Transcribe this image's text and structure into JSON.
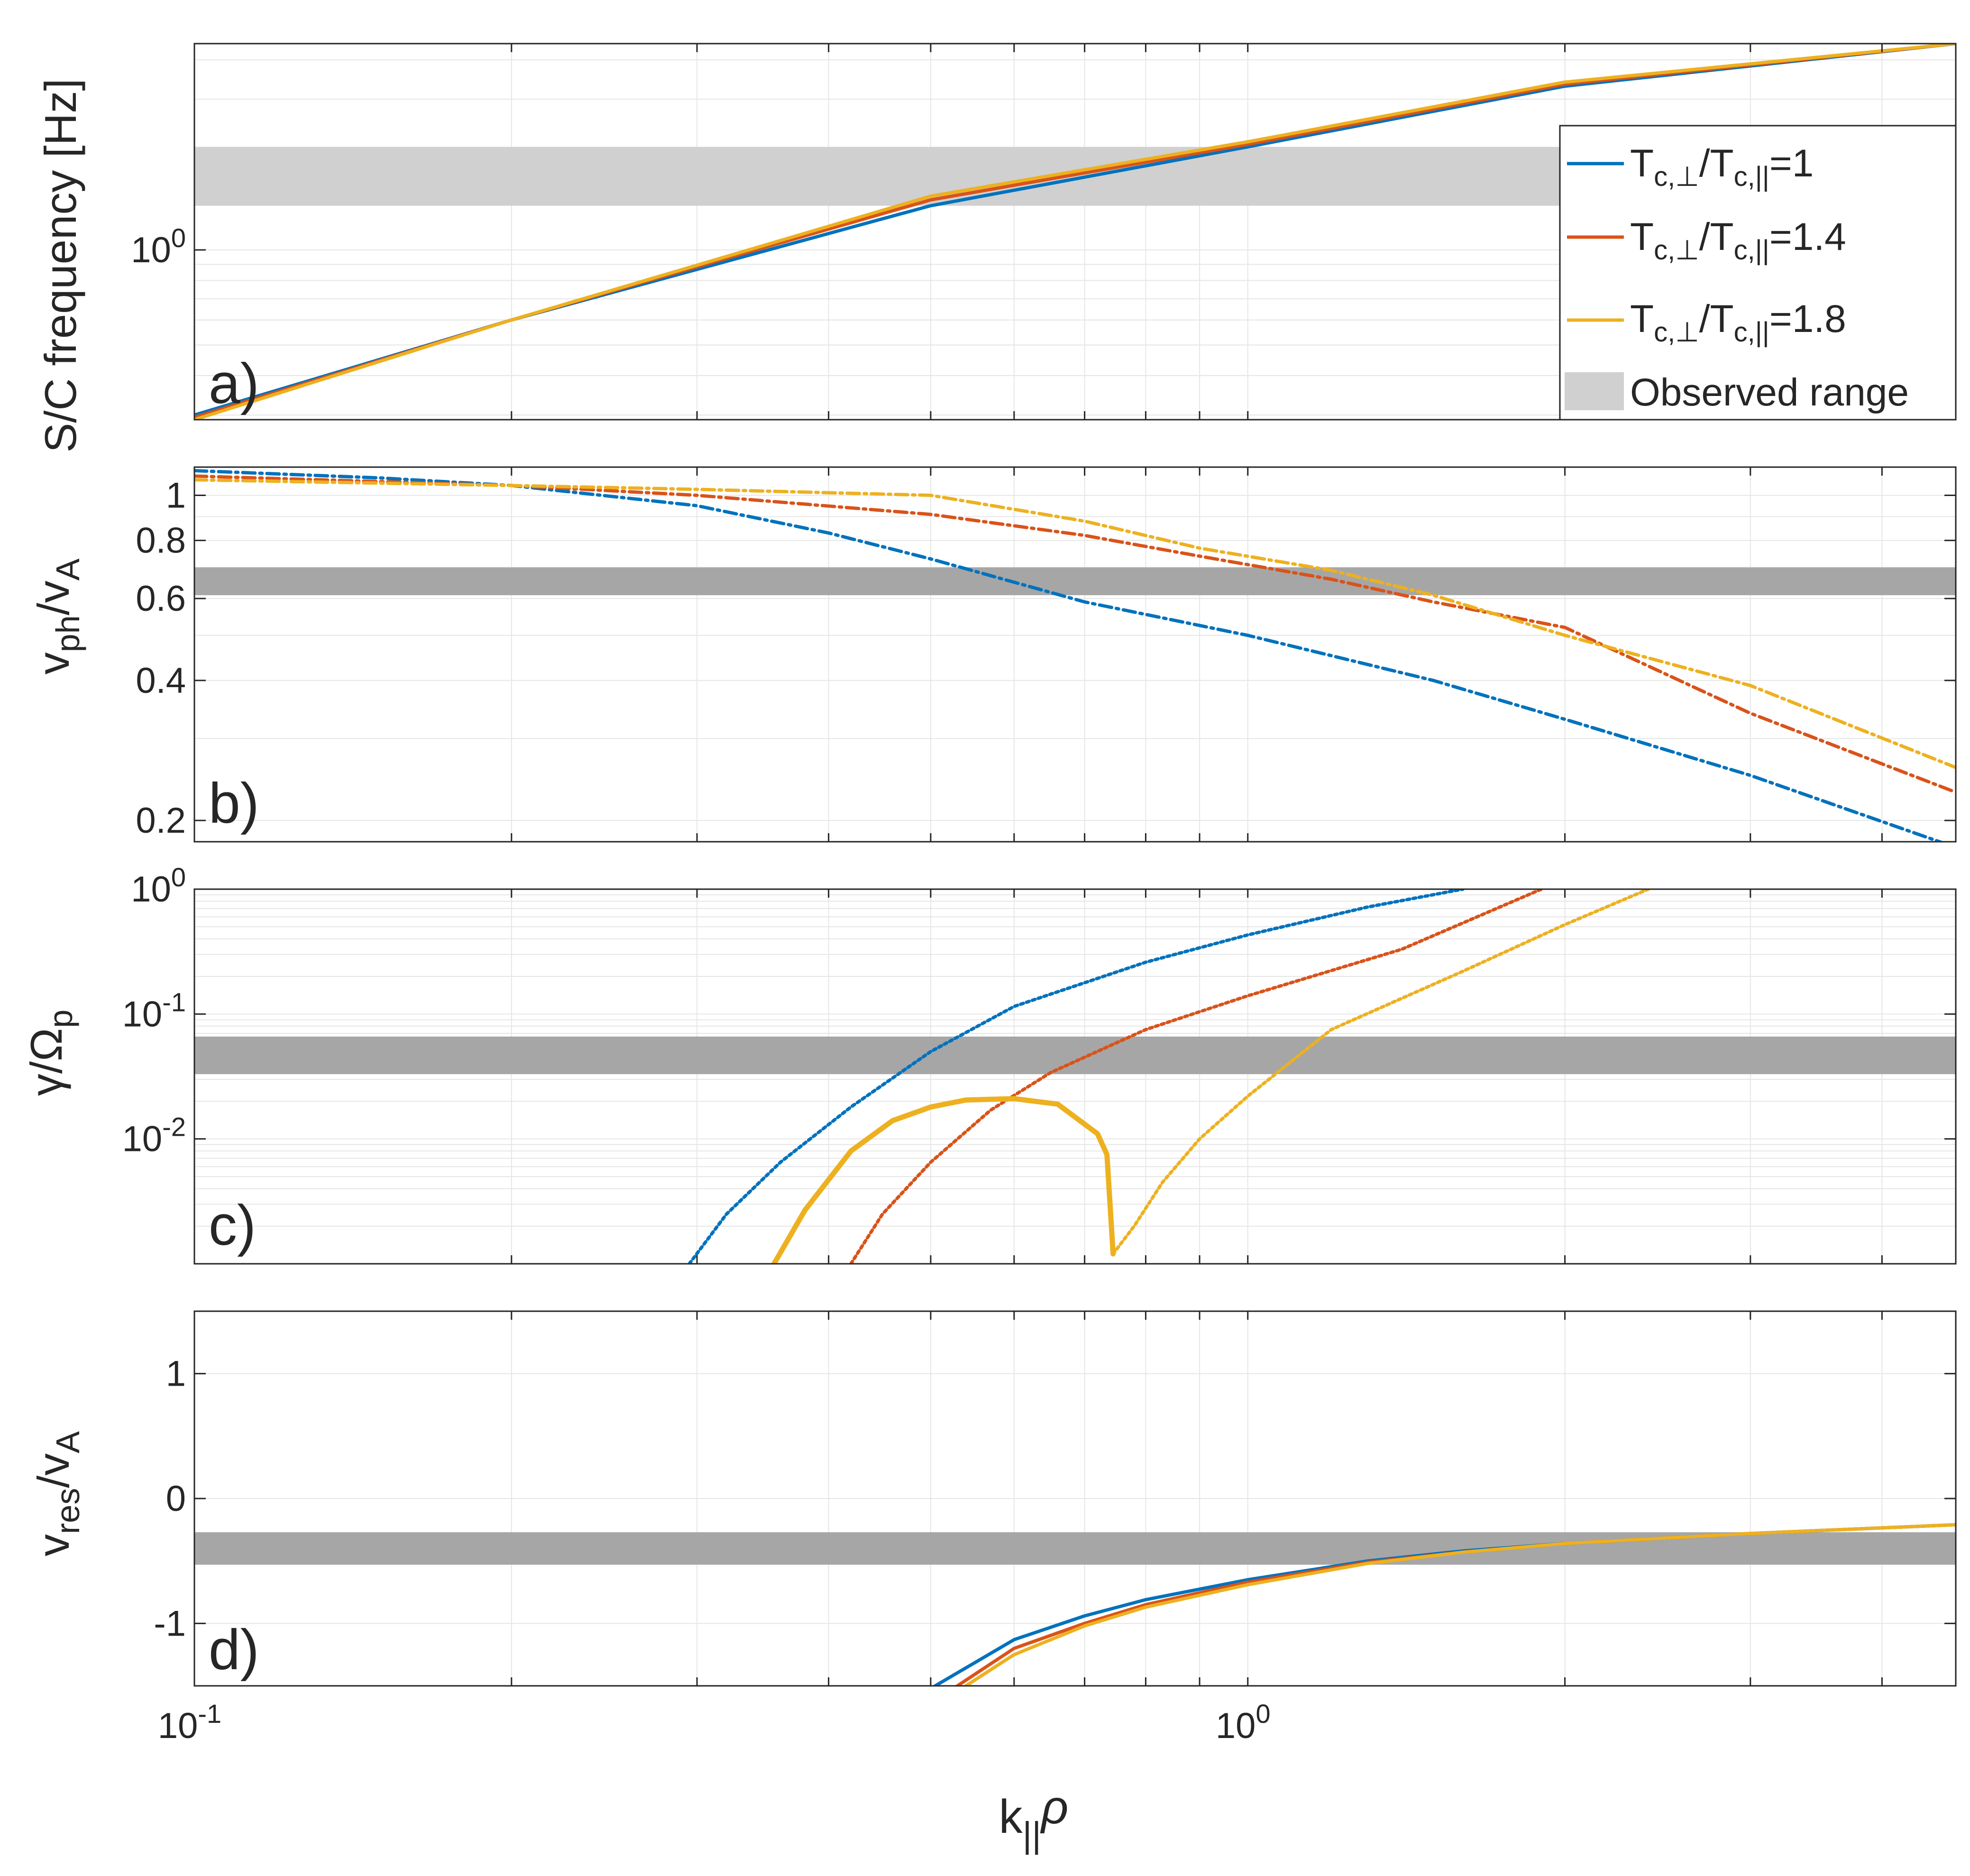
{
  "chart_data": [
    {
      "panel": "a",
      "type": "line",
      "panel_label": "a)",
      "ylabel": "S/C frequency [Hz]",
      "xscale": "log",
      "yscale": "log",
      "xlim": [
        0.1,
        4.7
      ],
      "ylim": [
        0.29,
        4.5
      ],
      "yticks": [
        {
          "v": 1,
          "b": "10",
          "e": "0"
        }
      ],
      "band": [
        1.38,
        2.12
      ],
      "series": [
        {
          "name": "T_c,⊥/T_c,||=1",
          "color": "#0072BD",
          "x": [
            0.1,
            0.2,
            0.5,
            1.0,
            2.0,
            4.7
          ],
          "y": [
            0.3,
            0.6,
            1.38,
            2.12,
            3.3,
            4.5
          ]
        },
        {
          "name": "T_c,⊥/T_c,||=1.4",
          "color": "#D95319",
          "x": [
            0.1,
            0.2,
            0.5,
            1.0,
            2.0,
            4.7
          ],
          "y": [
            0.295,
            0.6,
            1.44,
            2.16,
            3.35,
            4.5
          ]
        },
        {
          "name": "T_c,⊥/T_c,||=1.8",
          "color": "#EDB120",
          "x": [
            0.1,
            0.2,
            0.5,
            1.0,
            2.0,
            4.7
          ],
          "y": [
            0.29,
            0.6,
            1.48,
            2.2,
            3.4,
            4.5
          ]
        }
      ],
      "legend": {
        "entries": [
          {
            "base": "T",
            "sub": "c,⊥",
            "mid": "/T",
            "sub2": "c,||",
            "val": "=1",
            "color": "#0072BD"
          },
          {
            "base": "T",
            "sub": "c,⊥",
            "mid": "/T",
            "sub2": "c,||",
            "val": "=1.4",
            "color": "#D95319"
          },
          {
            "base": "T",
            "sub": "c,⊥",
            "mid": "/T",
            "sub2": "c,||",
            "val": "=1.8",
            "color": "#EDB120"
          }
        ],
        "band_label": "Observed range",
        "placement": "right"
      }
    },
    {
      "panel": "b",
      "type": "line",
      "panel_label": "b)",
      "ylabel": {
        "v": "v",
        "sub": "ph",
        "slash": "/v",
        "sub2": "A"
      },
      "xscale": "log",
      "yscale": "log",
      "xlim": [
        0.1,
        4.7
      ],
      "ylim": [
        0.18,
        1.15
      ],
      "yticks": [
        {
          "v": 0.2,
          "label": "0.2"
        },
        {
          "v": 0.4,
          "label": "0.4"
        },
        {
          "v": 0.6,
          "label": "0.6"
        },
        {
          "v": 0.8,
          "label": "0.8"
        },
        {
          "v": 1,
          "label": "1"
        }
      ],
      "band": [
        0.61,
        0.7
      ],
      "series": [
        {
          "name": "T_c,⊥/T_c,||=1",
          "color": "#0072BD",
          "style": "dashdot",
          "x": [
            0.1,
            0.15,
            0.2,
            0.3,
            0.4,
            0.5,
            0.7,
            1.0,
            1.5,
            2.0,
            3.0,
            4.7
          ],
          "y": [
            1.13,
            1.09,
            1.05,
            0.95,
            0.83,
            0.73,
            0.59,
            0.5,
            0.4,
            0.33,
            0.25,
            0.175
          ]
        },
        {
          "name": "T_c,⊥/T_c,||=1.4",
          "color": "#D95319",
          "style": "dashdot",
          "x": [
            0.1,
            0.2,
            0.3,
            0.5,
            0.7,
            0.9,
            1.2,
            1.5,
            2.0,
            3.0,
            4.7
          ],
          "y": [
            1.1,
            1.05,
            1.0,
            0.91,
            0.82,
            0.74,
            0.66,
            0.59,
            0.52,
            0.34,
            0.23
          ]
        },
        {
          "name": "T_c,⊥/T_c,||=1.8",
          "color": "#EDB120",
          "style": "dashdot",
          "x": [
            0.1,
            0.2,
            0.3,
            0.5,
            0.7,
            0.9,
            1.2,
            1.5,
            2.0,
            3.0,
            4.7
          ],
          "y": [
            1.08,
            1.05,
            1.03,
            1.0,
            0.88,
            0.77,
            0.69,
            0.61,
            0.5,
            0.39,
            0.26
          ]
        }
      ]
    },
    {
      "panel": "c",
      "type": "line",
      "panel_label": "c)",
      "ylabel": {
        "v": "γ/Ω",
        "sub": "p"
      },
      "xscale": "log",
      "yscale": "log",
      "xlim": [
        0.1,
        4.7
      ],
      "ylim": [
        0.001,
        1
      ],
      "yticks": [
        {
          "v": 0.01,
          "b": "10",
          "e": "-2"
        },
        {
          "v": 0.1,
          "b": "10",
          "e": "-1"
        },
        {
          "v": 1,
          "b": "10",
          "e": "0"
        }
      ],
      "band": [
        0.033,
        0.066
      ],
      "series": [
        {
          "name": "T_c,⊥/T_c,||=1",
          "color": "#0072BD",
          "style": "dotted",
          "x": [
            0.295,
            0.32,
            0.36,
            0.42,
            0.5,
            0.6,
            0.8,
            1.0,
            1.3,
            1.6
          ],
          "y": [
            0.001,
            0.0025,
            0.0065,
            0.018,
            0.05,
            0.115,
            0.26,
            0.43,
            0.72,
            1.0
          ]
        },
        {
          "name": "T_c,⊥/T_c,||=1.4",
          "color": "#D95319",
          "style": "dotted",
          "x": [
            0.42,
            0.45,
            0.5,
            0.57,
            0.65,
            0.8,
            1.0,
            1.4,
            1.9
          ],
          "y": [
            0.001,
            0.0025,
            0.0065,
            0.017,
            0.034,
            0.075,
            0.14,
            0.33,
            1.0
          ]
        },
        {
          "name": "T_c,⊥/T_c,||=1.8",
          "color": "#EDB120",
          "style": "dotted",
          "x": [
            0.745,
            0.78,
            0.83,
            0.9,
            1.0,
            1.2,
            1.6,
            2.0,
            2.4
          ],
          "y": [
            0.0012,
            0.002,
            0.0045,
            0.01,
            0.022,
            0.075,
            0.22,
            0.52,
            1.0
          ]
        },
        {
          "name": "T_c,⊥/T_c,||=1.8 (solid)",
          "color": "#EDB120",
          "style": "solid",
          "x": [
            0.355,
            0.38,
            0.42,
            0.46,
            0.5,
            0.54,
            0.6,
            0.66,
            0.72,
            0.735,
            0.745
          ],
          "y": [
            0.001,
            0.0027,
            0.008,
            0.014,
            0.018,
            0.0205,
            0.021,
            0.019,
            0.011,
            0.0075,
            0.0012
          ]
        }
      ]
    },
    {
      "panel": "d",
      "type": "line",
      "panel_label": "d)",
      "ylabel": {
        "v": "v",
        "sub": "res",
        "slash": "/v",
        "sub2": "A"
      },
      "xscale": "log",
      "yscale": "linear",
      "xlim": [
        0.1,
        4.7
      ],
      "ylim": [
        -1.5,
        1.5
      ],
      "yticks": [
        {
          "v": -1,
          "label": "-1"
        },
        {
          "v": 0,
          "label": "0"
        },
        {
          "v": 1,
          "label": "1"
        }
      ],
      "band": [
        -0.53,
        -0.27
      ],
      "series": [
        {
          "name": "T_c,⊥/T_c,||=1",
          "color": "#0072BD",
          "x": [
            0.505,
            0.6,
            0.7,
            0.8,
            1.0,
            1.3,
            1.6,
            2.0,
            3.0,
            4.7
          ],
          "y": [
            -1.5,
            -1.13,
            -0.94,
            -0.81,
            -0.65,
            -0.5,
            -0.42,
            -0.36,
            -0.28,
            -0.21
          ]
        },
        {
          "name": "T_c,⊥/T_c,||=1.4",
          "color": "#D95319",
          "x": [
            0.53,
            0.6,
            0.7,
            0.8,
            1.0,
            1.3,
            1.6,
            2.0,
            3.0,
            4.7
          ],
          "y": [
            -1.5,
            -1.2,
            -1.0,
            -0.85,
            -0.67,
            -0.51,
            -0.43,
            -0.36,
            -0.28,
            -0.21
          ]
        },
        {
          "name": "T_c,⊥/T_c,||=1.8",
          "color": "#EDB120",
          "x": [
            0.54,
            0.6,
            0.7,
            0.8,
            1.0,
            1.3,
            1.6,
            2.0,
            3.0,
            4.7
          ],
          "y": [
            -1.5,
            -1.25,
            -1.02,
            -0.87,
            -0.69,
            -0.52,
            -0.43,
            -0.36,
            -0.28,
            -0.21
          ]
        }
      ]
    }
  ],
  "xaxis": {
    "label_base": "k",
    "label_sub": "||",
    "label_rho": "ρ",
    "ticks": [
      {
        "v": 0.1,
        "b": "10",
        "e": "-1"
      },
      {
        "v": 1,
        "b": "10",
        "e": "0"
      }
    ]
  },
  "colors": {
    "blue": "#0072BD",
    "red": "#D95319",
    "yellow": "#EDB120",
    "band": "#A6A6A6",
    "band_light": "#D0D0D0"
  }
}
